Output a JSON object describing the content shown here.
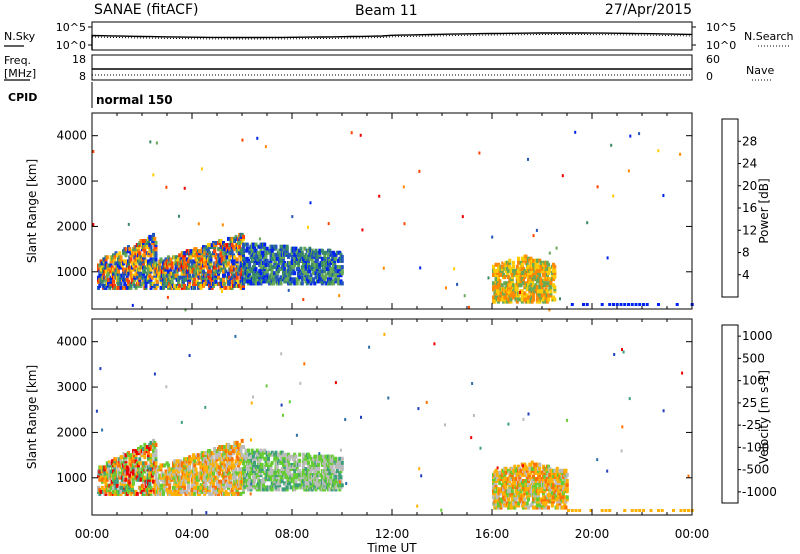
{
  "header": {
    "title": "SANAE (fitACF)",
    "beam": "Beam 11",
    "date": "27/Apr/2015"
  },
  "strip_panels": {
    "nsky": {
      "label": "N.Sky",
      "ticks": [
        "10^5",
        "10^0"
      ]
    },
    "nsearch": {
      "label": "N.Search",
      "ticks": [
        "10^5",
        "10^0"
      ],
      "legend_line": "dotted"
    },
    "freq": {
      "label": "Freq.",
      "unit": "[MHz]",
      "ticks": [
        "18",
        "8"
      ]
    },
    "nave": {
      "label": "Nave",
      "ticks": [
        "60",
        "0"
      ],
      "legend_line": "dotted"
    },
    "cpid": {
      "label": "CPID",
      "value": "normal 150"
    }
  },
  "chart_data": [
    {
      "type": "heatmap",
      "name": "power",
      "ylabel": "Slant Range [km]",
      "yticks": [
        "1000",
        "2000",
        "3000",
        "4000"
      ],
      "xlim": [
        "00:00",
        "24:00"
      ],
      "ylim": [
        180,
        4500
      ],
      "colorbar": {
        "label": "Power [dB]",
        "ticks": [
          "4",
          "8",
          "12",
          "16",
          "20",
          "24",
          "28"
        ],
        "colors": [
          "#0022ee",
          "#2255bb",
          "#3a8a66",
          "#66aa55",
          "#ffcc00",
          "#ff8800",
          "#ff4400",
          "#ee0000"
        ]
      },
      "clusters": [
        {
          "t0": 0.2,
          "t1": 2.5,
          "r0": 600,
          "r1": 1800,
          "dominant": "yellow-green-red"
        },
        {
          "t0": 2.5,
          "t1": 6.0,
          "r0": 600,
          "r1": 1800,
          "dominant": "green-yellow"
        },
        {
          "t0": 6.0,
          "t1": 10.0,
          "r0": 700,
          "r1": 1600,
          "dominant": "blue-green"
        },
        {
          "t0": 16.0,
          "t1": 18.5,
          "r0": 300,
          "r1": 1300,
          "dominant": "orange-yellow"
        }
      ]
    },
    {
      "type": "heatmap",
      "name": "velocity",
      "ylabel": "Slant Range [km]",
      "yticks": [
        "1000",
        "2000",
        "3000",
        "4000"
      ],
      "xlim": [
        "00:00",
        "24:00"
      ],
      "ylim": [
        180,
        4500
      ],
      "colorbar": {
        "label": "Velocity [m s-1]",
        "ticks": [
          "1000",
          "500",
          "100",
          "25",
          "-25",
          "-100",
          "-500",
          "-1000"
        ],
        "colors": [
          "#1f3fbf",
          "#2d6fa6",
          "#3c9e7a",
          "#66cc33",
          "#bbbbbb",
          "#ffb000",
          "#ff7000",
          "#ee0000"
        ]
      },
      "clusters": [
        {
          "t0": 0.2,
          "t1": 2.5,
          "r0": 600,
          "r1": 1800,
          "dominant": "orange-green"
        },
        {
          "t0": 2.5,
          "t1": 6.0,
          "r0": 600,
          "r1": 1800,
          "dominant": "orange-grey"
        },
        {
          "t0": 6.0,
          "t1": 10.0,
          "r0": 700,
          "r1": 1600,
          "dominant": "green-grey"
        },
        {
          "t0": 16.0,
          "t1": 19.0,
          "r0": 300,
          "r1": 1300,
          "dominant": "orange-grey"
        }
      ]
    }
  ],
  "time_axis": {
    "label": "Time UT",
    "ticks": [
      "00:00",
      "04:00",
      "08:00",
      "12:00",
      "16:00",
      "20:00",
      "00:00"
    ]
  }
}
